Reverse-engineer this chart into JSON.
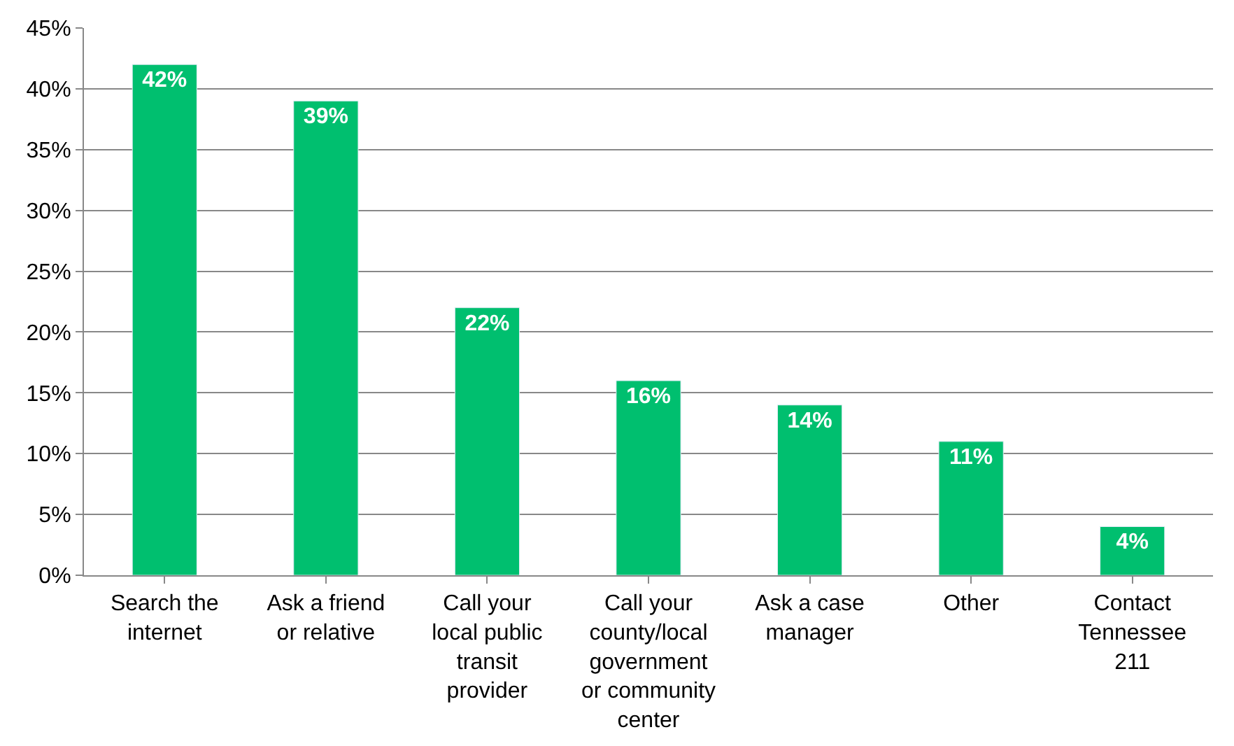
{
  "chart_data": {
    "type": "bar",
    "categories": [
      "Search the internet",
      "Ask a friend or relative",
      "Call your local public transit provider",
      "Call your county/local government or community center",
      "Ask a case manager",
      "Other",
      "Contact Tennessee 211"
    ],
    "values": [
      42,
      39,
      22,
      16,
      14,
      11,
      4
    ],
    "value_labels": [
      "42%",
      "39%",
      "22%",
      "16%",
      "14%",
      "11%",
      "4%"
    ],
    "color": "#00bf6f",
    "ylim": [
      0,
      45
    ],
    "yticks": [
      {
        "value": 0,
        "label": "0%"
      },
      {
        "value": 5,
        "label": "5%"
      },
      {
        "value": 10,
        "label": "10%"
      },
      {
        "value": 15,
        "label": "15%"
      },
      {
        "value": 20,
        "label": "20%"
      },
      {
        "value": 25,
        "label": "25%"
      },
      {
        "value": 30,
        "label": "30%"
      },
      {
        "value": 35,
        "label": "35%"
      },
      {
        "value": 40,
        "label": "40%"
      },
      {
        "value": 45,
        "label": "45%"
      }
    ],
    "grid": "y"
  }
}
